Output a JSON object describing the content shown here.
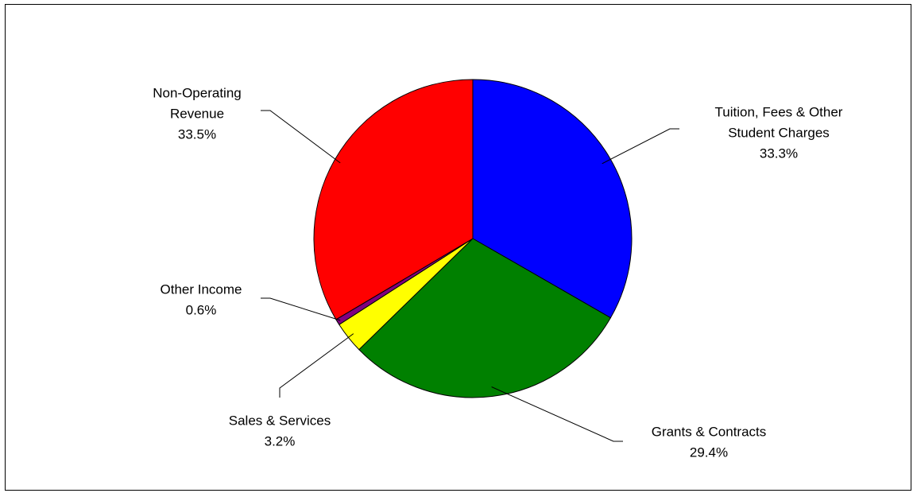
{
  "chart_data": {
    "type": "pie",
    "title": "",
    "start_angle_deg": 0,
    "direction": "clockwise",
    "legend": "none",
    "slices": [
      {
        "label_lines": [
          "Tuition, Fees & Other",
          "Student Charges"
        ],
        "value": 33.3,
        "value_label": "33.3%",
        "color": "#0000FF"
      },
      {
        "label_lines": [
          "Grants & Contracts"
        ],
        "value": 29.4,
        "value_label": "29.4%",
        "color": "#008000"
      },
      {
        "label_lines": [
          "Sales & Services"
        ],
        "value": 3.2,
        "value_label": "3.2%",
        "color": "#FFFF00"
      },
      {
        "label_lines": [
          "Other Income"
        ],
        "value": 0.6,
        "value_label": "0.6%",
        "color": "#800080"
      },
      {
        "label_lines": [
          "Non-Operating",
          "Revenue"
        ],
        "value": 33.5,
        "value_label": "33.5%",
        "color": "#FF0000"
      }
    ]
  }
}
